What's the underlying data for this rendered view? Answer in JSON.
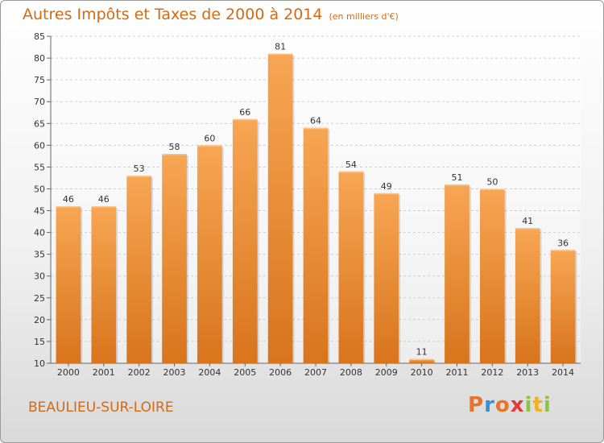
{
  "chart_data": {
    "type": "bar",
    "title": "Autres Impôts et Taxes de 2000 à 2014",
    "subtitle": "(en milliers d'€)",
    "categories": [
      "2000",
      "2001",
      "2002",
      "2003",
      "2004",
      "2005",
      "2006",
      "2007",
      "2008",
      "2009",
      "2010",
      "2011",
      "2012",
      "2013",
      "2014"
    ],
    "values": [
      46,
      46,
      53,
      58,
      60,
      66,
      81,
      64,
      54,
      49,
      11,
      51,
      50,
      41,
      36
    ],
    "ylim": [
      10,
      85
    ],
    "yticks": [
      10,
      15,
      20,
      25,
      30,
      35,
      40,
      45,
      50,
      55,
      60,
      65,
      70,
      75,
      80,
      85
    ],
    "grid": true,
    "bar_color": "#f0892c"
  },
  "footer": {
    "city": "BEAULIEU-SUR-LOIRE",
    "logo_letters": [
      "P",
      "r",
      "o",
      "x",
      "i",
      "t",
      "i"
    ],
    "logo_colors": [
      "#e8742a",
      "#3a8ed8",
      "#e8742a",
      "#e23b3b",
      "#8cc63f",
      "#f2b01e",
      "#8cc63f"
    ]
  }
}
